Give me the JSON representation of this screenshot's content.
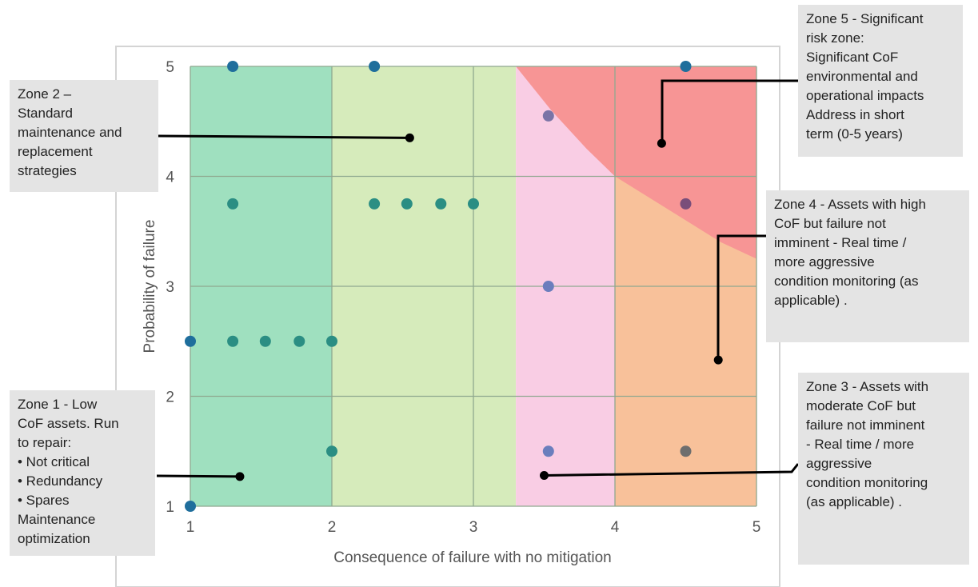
{
  "chart_data": {
    "type": "scatter",
    "title": "",
    "xlabel": "Consequence of failure with no mitigation",
    "ylabel": "Probability of failure",
    "xlim": [
      1,
      5
    ],
    "ylim": [
      1,
      5
    ],
    "x_ticks": [
      "1",
      "2",
      "3",
      "4",
      "5"
    ],
    "y_ticks": [
      "1",
      "2",
      "3",
      "4",
      "5"
    ],
    "grid": true,
    "zones": [
      {
        "id": "zone1",
        "x_range": [
          1,
          2
        ],
        "color": "#9fe0bf"
      },
      {
        "id": "zone2",
        "x_range": [
          2,
          3.3
        ],
        "color": "#d6ebbb"
      },
      {
        "id": "zone3",
        "x_range": [
          3.3,
          4
        ],
        "color": "#f9cde4"
      },
      {
        "id": "zone4",
        "x_range": [
          4,
          5
        ],
        "color": "#f8c19a"
      },
      {
        "id": "zone5",
        "boundary": [
          [
            3.3,
            5
          ],
          [
            3.55,
            4.6
          ],
          [
            3.8,
            4.25
          ],
          [
            4,
            4.0
          ],
          [
            4.25,
            3.8
          ],
          [
            4.5,
            3.6
          ],
          [
            4.75,
            3.4
          ],
          [
            5,
            3.25
          ]
        ],
        "color": "#f79595"
      }
    ],
    "points": [
      {
        "x": 1.3,
        "y": 5,
        "color": "#1f6e9c"
      },
      {
        "x": 2.3,
        "y": 5,
        "color": "#1f6e9c"
      },
      {
        "x": 4.5,
        "y": 5,
        "color": "#1f6e9c"
      },
      {
        "x": 3.53,
        "y": 4.55,
        "color": "#7a74a6"
      },
      {
        "x": 1.3,
        "y": 3.75,
        "color": "#2b8e83"
      },
      {
        "x": 2.3,
        "y": 3.75,
        "color": "#2b8e83"
      },
      {
        "x": 2.53,
        "y": 3.75,
        "color": "#2b8e83"
      },
      {
        "x": 2.77,
        "y": 3.75,
        "color": "#2b8e83"
      },
      {
        "x": 3.0,
        "y": 3.75,
        "color": "#2b8e83"
      },
      {
        "x": 4.5,
        "y": 3.75,
        "color": "#7a4e7a"
      },
      {
        "x": 3.53,
        "y": 3.0,
        "color": "#6b7ebd"
      },
      {
        "x": 1.0,
        "y": 2.5,
        "color": "#1f6e9c"
      },
      {
        "x": 1.3,
        "y": 2.5,
        "color": "#2b8e83"
      },
      {
        "x": 1.53,
        "y": 2.5,
        "color": "#2b8e83"
      },
      {
        "x": 1.77,
        "y": 2.5,
        "color": "#2b8e83"
      },
      {
        "x": 2.0,
        "y": 2.5,
        "color": "#2b8e83"
      },
      {
        "x": 2.0,
        "y": 1.5,
        "color": "#2b8e83"
      },
      {
        "x": 3.53,
        "y": 1.5,
        "color": "#6b7ebd"
      },
      {
        "x": 4.5,
        "y": 1.5,
        "color": "#6e6e6e"
      },
      {
        "x": 1.0,
        "y": 1.0,
        "color": "#1f6e9c"
      }
    ],
    "annotations": [
      {
        "id": "zone1",
        "lines": [
          "Zone 1 - Low",
          "CoF assets. Run",
          "to repair:",
          "• Not critical",
          "• Redundancy",
          "• Spares",
          "Maintenance",
          "optimization"
        ],
        "target": [
          1.35,
          1.27
        ]
      },
      {
        "id": "zone2",
        "lines": [
          "Zone 2 –",
          "Standard",
          "maintenance and",
          "replacement",
          "strategies"
        ],
        "target": [
          2.55,
          4.35
        ]
      },
      {
        "id": "zone3",
        "lines": [
          "Zone 3 - Assets with",
          "moderate CoF but",
          "failure not imminent",
          "- Real time / more",
          "aggressive",
          "condition monitoring",
          "(as applicable) ."
        ],
        "target": [
          3.5,
          1.28
        ]
      },
      {
        "id": "zone4",
        "lines": [
          "Zone 4 - Assets with high",
          "CoF but failure not",
          "imminent - Real time /",
          "more aggressive",
          "condition monitoring (as",
          "applicable) ."
        ],
        "target": [
          4.73,
          2.33
        ]
      },
      {
        "id": "zone5",
        "lines": [
          "Zone 5 - Significant",
          "risk zone:",
          "Significant CoF",
          "environmental and",
          "operational impacts",
          "Address in short",
          "term (0-5 years)"
        ],
        "target": [
          4.33,
          4.3
        ]
      }
    ]
  }
}
